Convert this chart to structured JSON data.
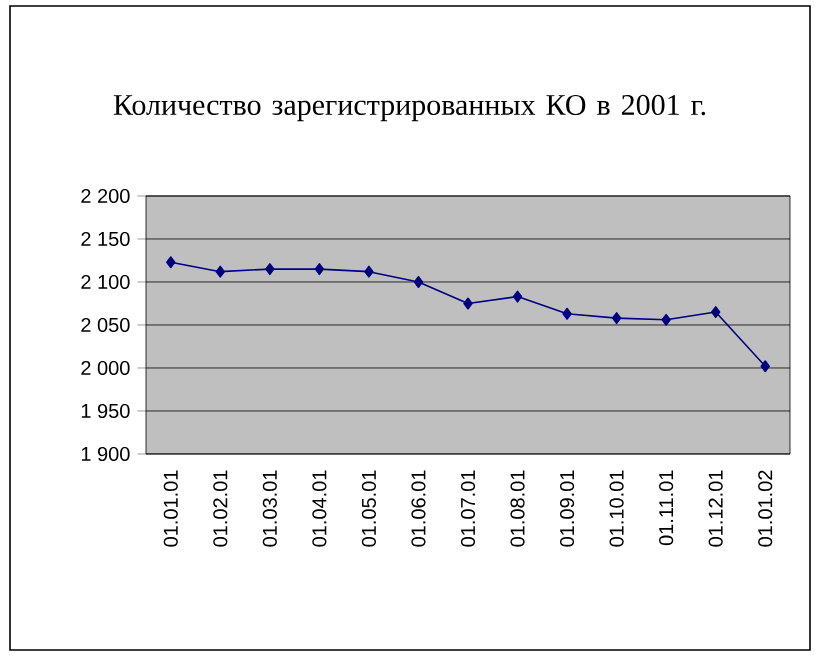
{
  "chart_data": {
    "type": "line",
    "title": "Количество зарегистрированных КО в 2001 г.",
    "categories": [
      "01.01.01",
      "01.02.01",
      "01.03.01",
      "01.04.01",
      "01.05.01",
      "01.06.01",
      "01.07.01",
      "01.08.01",
      "01.09.01",
      "01.10.01",
      "01.11.01",
      "01.12.01",
      "01.01.02"
    ],
    "series": [
      {
        "color": "#000080",
        "values": [
          2123,
          2112,
          2115,
          2115,
          2112,
          2100,
          2075,
          2083,
          2063,
          2058,
          2056,
          2065,
          2002
        ]
      }
    ],
    "ylim": [
      1900,
      2200
    ],
    "yticks": [
      {
        "value": 1900,
        "label": "1 900"
      },
      {
        "value": 1950,
        "label": "1 950"
      },
      {
        "value": 2000,
        "label": "2 000"
      },
      {
        "value": 2050,
        "label": "2 050"
      },
      {
        "value": 2100,
        "label": "2 100"
      },
      {
        "value": 2150,
        "label": "2 150"
      },
      {
        "value": 2200,
        "label": "2 200"
      }
    ],
    "grid": "y",
    "marker": "diamond",
    "line_style": "solid"
  }
}
